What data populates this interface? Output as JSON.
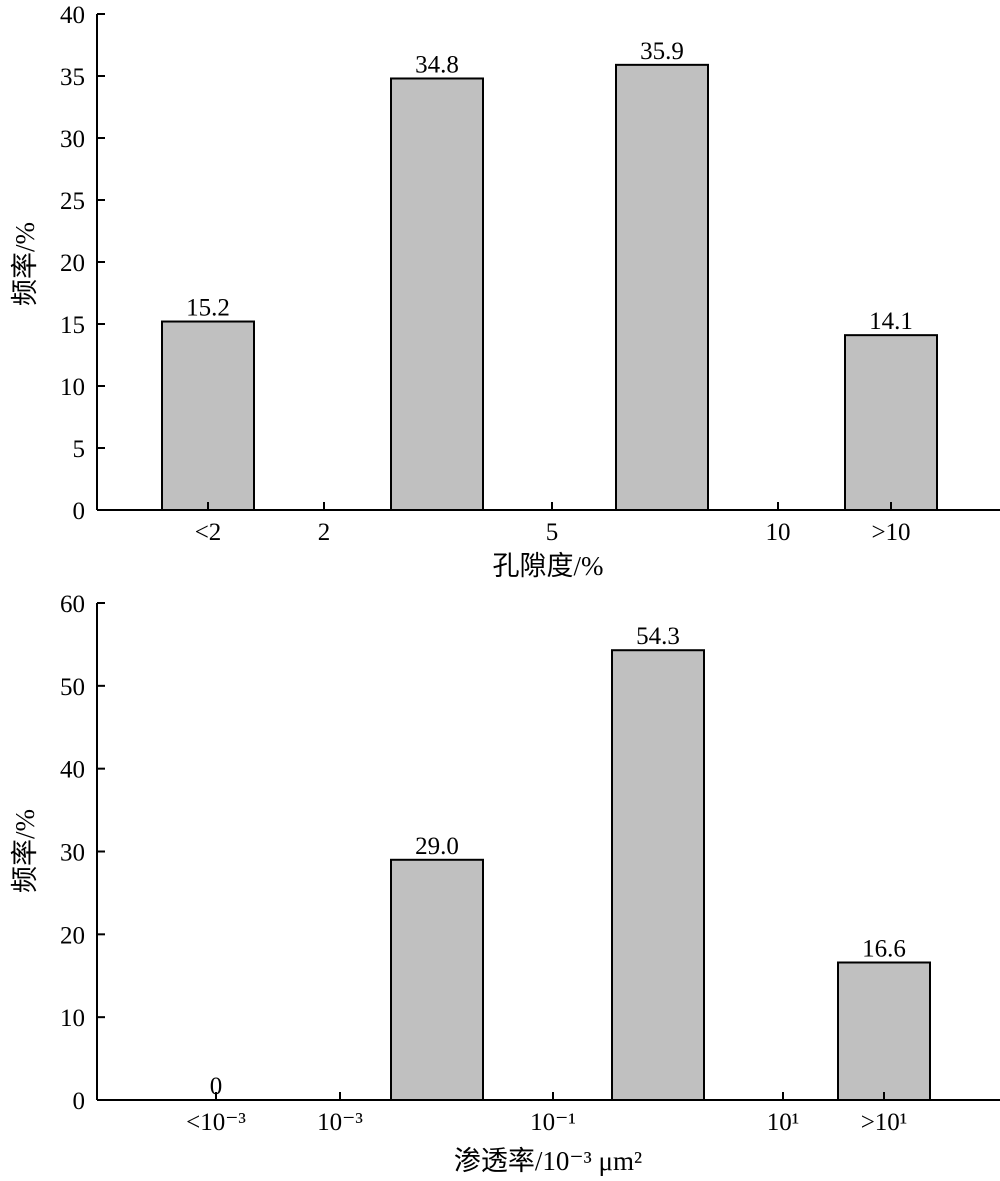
{
  "chart_data": [
    {
      "type": "bar",
      "title": "",
      "xlabel": "孔隙度/%",
      "ylabel": "频率/%",
      "ylim": [
        0,
        40
      ],
      "yticks": [
        "0",
        "5",
        "10",
        "15",
        "20",
        "25",
        "30",
        "35",
        "40"
      ],
      "xtick_labels": [
        "<2",
        "2",
        "5",
        "10",
        ">10"
      ],
      "categories": [
        "<2",
        "2~5",
        "5~10",
        ">10"
      ],
      "values": [
        15.2,
        34.8,
        35.9,
        14.1
      ],
      "value_labels": [
        "15.2",
        "34.8",
        "35.9",
        "14.1"
      ],
      "bar_color": "#c0c0c0",
      "grid": false,
      "legend": "none"
    },
    {
      "type": "bar",
      "title": "",
      "xlabel": "渗透率/10⁻³ μm²",
      "ylabel": "频率/%",
      "ylim": [
        0,
        60
      ],
      "yticks": [
        "0",
        "10",
        "20",
        "30",
        "40",
        "50",
        "60"
      ],
      "xtick_labels": [
        "<10⁻³",
        "10⁻³",
        "10⁻¹",
        "10¹",
        ">10¹"
      ],
      "categories": [
        "<10⁻³",
        "10⁻³~10⁻¹",
        "10⁻¹~10¹",
        ">10¹"
      ],
      "values": [
        0,
        29.0,
        54.3,
        16.6
      ],
      "value_labels": [
        "0",
        "29.0",
        "54.3",
        "16.6"
      ],
      "bar_color": "#c0c0c0",
      "grid": false,
      "legend": "none"
    }
  ]
}
